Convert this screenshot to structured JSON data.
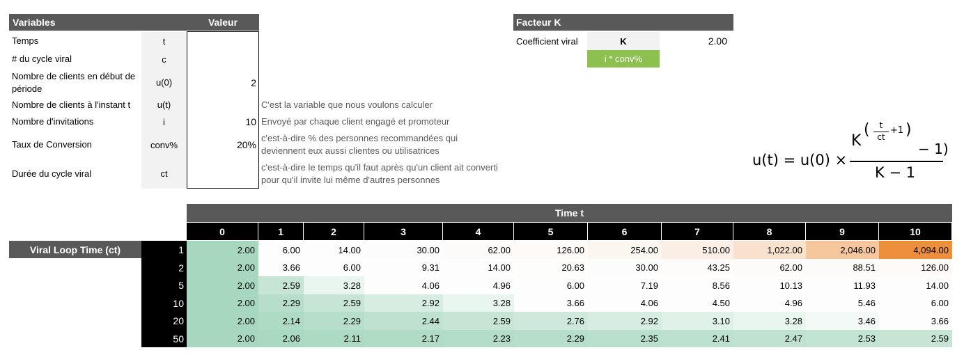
{
  "variables": {
    "header_label": "Variables",
    "header_value": "Valeur",
    "rows": [
      {
        "label": "Temps",
        "symbol": "t",
        "value": "",
        "note": ""
      },
      {
        "label": "# du cycle viral",
        "symbol": "c",
        "value": "",
        "note": ""
      },
      {
        "label": "Nombre de clients en début de période",
        "symbol": "u(0)",
        "value": "2",
        "note": ""
      },
      {
        "label": "Nombre de clients à l'instant t",
        "symbol": "u(t)",
        "value": "",
        "note": "C'est la variable que nous voulons calculer"
      },
      {
        "label": "Nombre d'invitations",
        "symbol": "i",
        "value": "10",
        "note": "Envoyé par chaque client engagé et promoteur"
      },
      {
        "label": "Taux de Conversion",
        "symbol": "conv%",
        "value": "20%",
        "note": "c'est-à-dire % des personnes recommandées qui deviennent eux aussi clientes ou utilisatrices"
      },
      {
        "label": "Durée du cycle viral",
        "symbol": "ct",
        "value": "",
        "note": "c'est-à-dire le temps qu'il faut après qu'un client ait converti pour qu'il invite lui même d'autres personnes"
      }
    ]
  },
  "k_factor": {
    "header": "Facteur K",
    "label": "Coefficient viral",
    "symbol": "K",
    "value": "2.00",
    "formula_note": "i * conv%"
  },
  "formula": {
    "lhs": "u(t) = u(0) ×",
    "base": "K",
    "exp_num": "t",
    "exp_den": "ct",
    "exp_plus": "+1",
    "minus_one": "− 1)",
    "denominator": "K − 1"
  },
  "table": {
    "title": "Time t",
    "row_axis_label": "Viral Loop Time (ct)",
    "columns": [
      "0",
      "1",
      "2",
      "3",
      "4",
      "5",
      "6",
      "7",
      "8",
      "9",
      "10"
    ],
    "rows": [
      {
        "ct": "1",
        "values": [
          "2.00",
          "6.00",
          "14.00",
          "30.00",
          "62.00",
          "126.00",
          "254.00",
          "510.00",
          "1,022.00",
          "2,046.00",
          "4,094.00"
        ]
      },
      {
        "ct": "2",
        "values": [
          "2.00",
          "3.66",
          "6.00",
          "9.31",
          "14.00",
          "20.63",
          "30.00",
          "43.25",
          "62.00",
          "88.51",
          "126.00"
        ]
      },
      {
        "ct": "5",
        "values": [
          "2.00",
          "2.59",
          "3.28",
          "4.06",
          "4.96",
          "6.00",
          "7.19",
          "8.56",
          "10.13",
          "11.93",
          "14.00"
        ]
      },
      {
        "ct": "10",
        "values": [
          "2.00",
          "2.29",
          "2.59",
          "2.92",
          "3.28",
          "3.66",
          "4.06",
          "4.50",
          "4.96",
          "5.46",
          "6.00"
        ]
      },
      {
        "ct": "20",
        "values": [
          "2.00",
          "2.14",
          "2.29",
          "2.44",
          "2.59",
          "2.76",
          "2.92",
          "3.10",
          "3.28",
          "3.46",
          "3.66"
        ]
      },
      {
        "ct": "50",
        "values": [
          "2.00",
          "2.06",
          "2.11",
          "2.17",
          "2.23",
          "2.29",
          "2.35",
          "2.41",
          "2.47",
          "2.53",
          "2.59"
        ]
      }
    ]
  },
  "colors": {
    "header_gray": "#595959",
    "green_formula": "#8dc04f",
    "scale_low": "#a7d8bf",
    "scale_mid": "#fdfdfd",
    "scale_high": "#ee8f3b"
  }
}
